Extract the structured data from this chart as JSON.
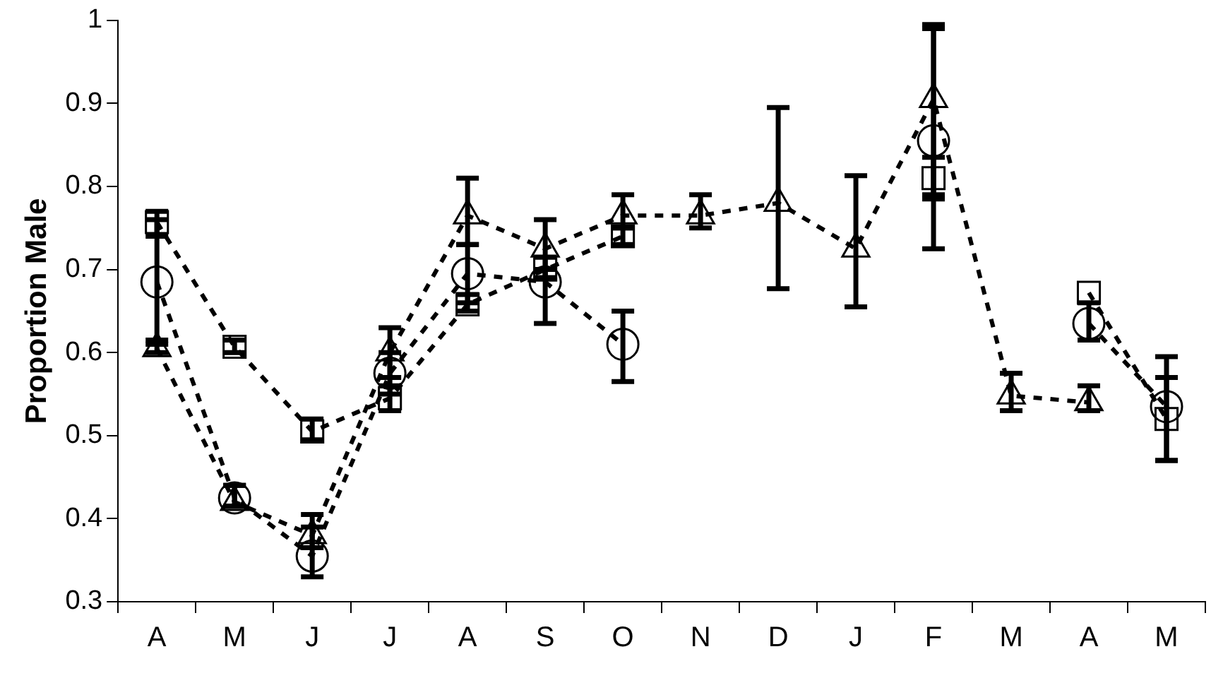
{
  "chart_data": {
    "type": "line",
    "ylabel": "Proportion Male",
    "categories": [
      "A",
      "M",
      "J",
      "J",
      "A",
      "S",
      "O",
      "N",
      "D",
      "J",
      "F",
      "M",
      "A",
      "M"
    ],
    "ylim": [
      0.3,
      1
    ],
    "yticks": [
      0.3,
      0.4,
      0.5,
      0.6,
      0.7,
      0.8,
      0.9,
      1
    ],
    "grid": false,
    "legend": false,
    "line_style": "dashed",
    "series": [
      {
        "color": "#000000",
        "marker": "circle",
        "values": [
          0.685,
          0.425,
          0.355,
          0.575,
          0.695,
          0.685,
          0.61,
          null,
          null,
          null,
          0.855,
          null,
          0.635,
          0.535
        ],
        "errors": [
          [
            0.61,
            0.76
          ],
          [
            0.415,
            0.44
          ],
          [
            0.33,
            0.39
          ],
          [
            0.55,
            0.6
          ],
          [
            0.66,
            0.73
          ],
          [
            0.635,
            0.7
          ],
          [
            0.565,
            0.65
          ],
          null,
          null,
          null,
          [
            0.79,
            0.99
          ],
          null,
          [
            0.615,
            0.66
          ],
          [
            0.47,
            0.595
          ]
        ]
      },
      {
        "color": "#000000",
        "marker": "square",
        "values": [
          0.757,
          0.607,
          0.505,
          0.545,
          0.658,
          0.7,
          0.74,
          null,
          null,
          null,
          0.81,
          null,
          0.672,
          0.52
        ],
        "errors": [
          [
            0.74,
            0.77
          ],
          [
            0.6,
            0.615
          ],
          [
            0.495,
            0.52
          ],
          [
            0.53,
            0.56
          ],
          [
            0.65,
            0.67
          ],
          [
            0.69,
            0.715
          ],
          [
            0.73,
            0.75
          ],
          null,
          null,
          null,
          [
            0.785,
            0.835
          ],
          null,
          null,
          [
            0.47,
            0.57
          ]
        ]
      },
      {
        "color": "#000000",
        "marker": "triangle",
        "values": [
          0.605,
          0.42,
          0.38,
          0.6,
          0.765,
          0.725,
          0.765,
          0.765,
          0.78,
          0.725,
          0.905,
          0.548,
          0.54,
          null
        ],
        "errors": [
          [
            0.6,
            0.615
          ],
          [
            0.415,
            0.44
          ],
          [
            0.365,
            0.405
          ],
          [
            0.57,
            0.63
          ],
          [
            0.73,
            0.81
          ],
          [
            0.69,
            0.76
          ],
          [
            0.75,
            0.79
          ],
          [
            0.75,
            0.79
          ],
          [
            0.677,
            0.895
          ],
          [
            0.655,
            0.813
          ],
          [
            0.725,
            0.995
          ],
          [
            0.53,
            0.575
          ],
          [
            0.53,
            0.56
          ],
          null
        ]
      }
    ]
  }
}
